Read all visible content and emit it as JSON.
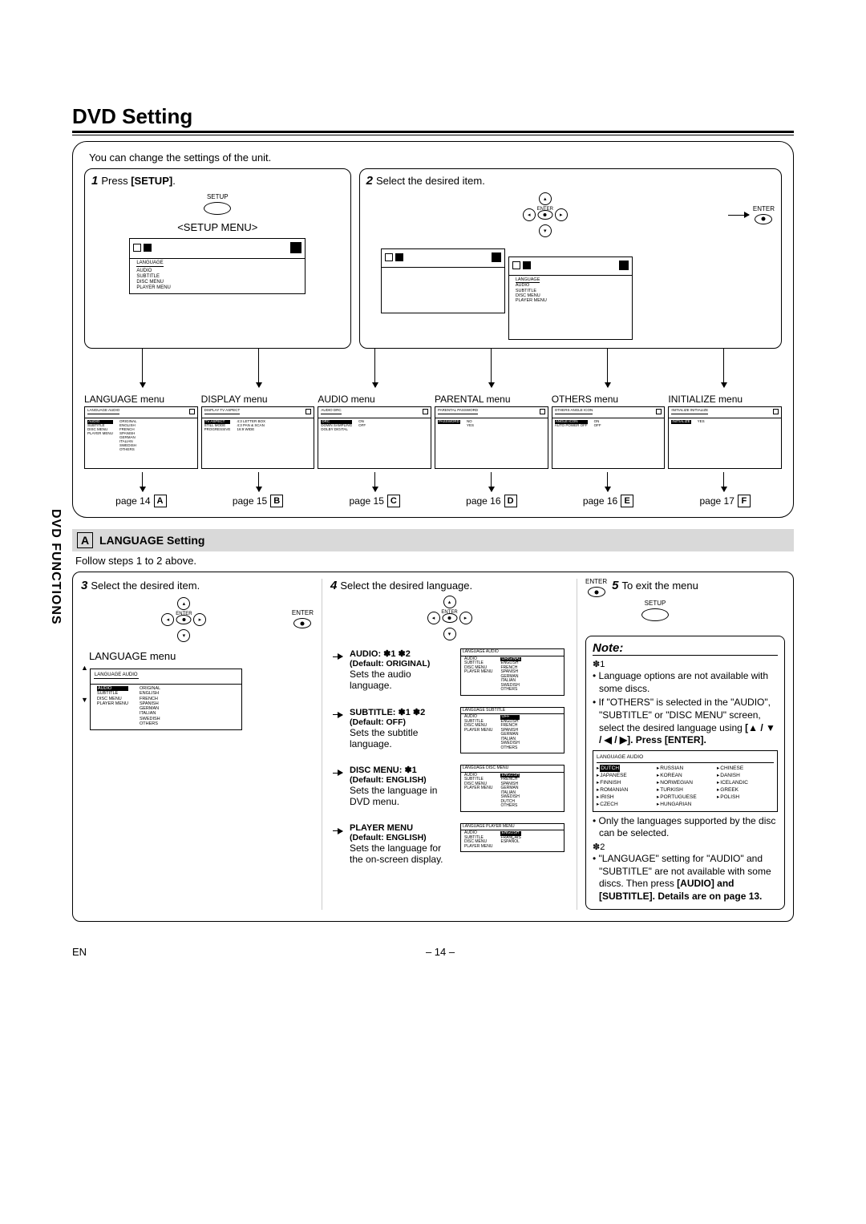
{
  "title": "DVD Setting",
  "sidebar": "DVD FUNCTIONS",
  "intro": "You can change the settings of the unit.",
  "step1": {
    "num": "1",
    "text": "Press ",
    "bold": "[SETUP]",
    "btn": "SETUP",
    "menuTitle": "<SETUP MENU>"
  },
  "step2": {
    "num": "2",
    "text": "Select the desired item.",
    "enter": "ENTER"
  },
  "osdLang": {
    "title": "LANGUAGE",
    "items": [
      "AUDIO",
      "SUBTITLE",
      "DISC MENU",
      "PLAYER MENU"
    ]
  },
  "menus": [
    {
      "name": "LANGUAGE menu",
      "t": "LANGUAGE  AUDIO",
      "l": [
        "AUDIO",
        "SUBTITLE",
        "DISC MENU",
        "PLAYER MENU"
      ],
      "r": [
        "ORIGINAL",
        "ENGLISH",
        "FRENCH",
        "SPANISH",
        "GERMAN",
        "ITALIAN",
        "SWEDISH",
        "OTHERS"
      ],
      "hl": 0,
      "pg": "page 14",
      "let": "A"
    },
    {
      "name": "DISPLAY menu",
      "t": "DISPLAY  TV ASPECT",
      "l": [
        "TV ASPECT",
        "STILL MODE",
        "PROGRESSIVE"
      ],
      "r": [
        "4:3 LETTER BOX",
        "4:3 PAN & SCAN",
        "16:9 WIDE"
      ],
      "hl": 0,
      "pg": "page 15",
      "let": "B"
    },
    {
      "name": "AUDIO menu",
      "t": "AUDIO  DRC",
      "l": [
        "DRC",
        "DOWN SAMPLING",
        "DOLBY DIGITAL"
      ],
      "r": [
        "ON",
        "OFF"
      ],
      "hl": 0,
      "pg": "page 15",
      "let": "C"
    },
    {
      "name": "PARENTAL menu",
      "t": "PARENTAL  PASSWORD",
      "l": [
        "PASSWORD"
      ],
      "r": [
        "NO",
        "YES"
      ],
      "hl": 0,
      "pg": "page 16",
      "let": "D"
    },
    {
      "name": "OTHERS menu",
      "t": "OTHERS  ANGLE ICON",
      "l": [
        "ANGLE ICON",
        "AUTO POWER OFF"
      ],
      "r": [
        "ON",
        "OFF"
      ],
      "hl": 0,
      "pg": "page 16",
      "let": "E"
    },
    {
      "name": "INITIALIZE menu",
      "t": "INITIALIZE  INITIALIZE",
      "l": [
        "INITIALIZE"
      ],
      "r": [
        "YES"
      ],
      "hl": 0,
      "pg": "page 17",
      "let": "F"
    }
  ],
  "sectionA": {
    "letter": "A",
    "title": "LANGUAGE Setting",
    "follow": "Follow steps 1 to 2 above."
  },
  "step3": {
    "num": "3",
    "text": "Select the desired item.",
    "label": "LANGUAGE menu",
    "enter": "ENTER",
    "osd": {
      "t": "LANGUAGE  AUDIO",
      "l": [
        "AUDIO",
        "SUBTITLE",
        "DISC MENU",
        "PLAYER MENU"
      ],
      "r": [
        "ORIGINAL",
        "ENGLISH",
        "FRENCH",
        "SPANISH",
        "GERMAN",
        "ITALIAN",
        "SWEDISH",
        "OTHERS"
      ]
    }
  },
  "step4": {
    "num": "4",
    "text": "Select the desired language."
  },
  "step5": {
    "num": "5",
    "text": "To exit the menu",
    "enter": "ENTER",
    "btn": "SETUP"
  },
  "specs": [
    {
      "h": "AUDIO: ✽1 ✽2",
      "d": "(Default: ORIGINAL)",
      "desc": "Sets the audio language.",
      "osd": {
        "t": "LANGUAGE  AUDIO",
        "l": [
          "AUDIO",
          "SUBTITLE",
          "DISC MENU",
          "PLAYER MENU"
        ],
        "r": [
          "ORIGINAL",
          "ENGLISH",
          "FRENCH",
          "SPANISH",
          "GERMAN",
          "ITALIAN",
          "SWEDISH",
          "OTHERS"
        ],
        "hl": 0
      }
    },
    {
      "h": "SUBTITLE: ✽1 ✽2",
      "d": "(Default: OFF)",
      "desc": "Sets the subtitle language.",
      "osd": {
        "t": "LANGUAGE  SUBTITLE",
        "l": [
          "AUDIO",
          "SUBTITLE",
          "DISC MENU",
          "PLAYER MENU"
        ],
        "r": [
          "OFF",
          "ENGLISH",
          "FRENCH",
          "SPANISH",
          "GERMAN",
          "ITALIAN",
          "SWEDISH",
          "OTHERS"
        ],
        "hl": 0
      }
    },
    {
      "h": "DISC MENU: ✽1",
      "d": "(Default: ENGLISH)",
      "desc": "Sets the language in DVD menu.",
      "osd": {
        "t": "LANGUAGE  DISC MENU",
        "l": [
          "AUDIO",
          "SUBTITLE",
          "DISC MENU",
          "PLAYER MENU"
        ],
        "r": [
          "ENGLISH",
          "FRENCH",
          "SPANISH",
          "GERMAN",
          "ITALIAN",
          "SWEDISH",
          "DUTCH",
          "OTHERS"
        ],
        "hl": 0
      }
    },
    {
      "h": "PLAYER MENU",
      "d": "(Default: ENGLISH)",
      "desc": "Sets the language for the on-screen display.",
      "osd": {
        "t": "LANGUAGE  PLAYER MENU",
        "l": [
          "AUDIO",
          "SUBTITLE",
          "DISC MENU",
          "PLAYER MENU"
        ],
        "r": [
          "ENGLISH",
          "FRANÇAIS",
          "ESPAÑOL"
        ],
        "hl": 0
      }
    }
  ],
  "note": {
    "title": "Note:",
    "s1": "✽1",
    "b1a": "Language options are not available with some discs.",
    "b1b": "If \"OTHERS\" is selected in the \"AUDIO\", \"SUBTITLE\" or \"DISC MENU\" screen, select the desired language using",
    "b1c": "[▲ / ▼ / ◀ / ▶]. Press [ENTER].",
    "langgrid": {
      "t": "LANGUAGE  AUDIO",
      "items": [
        "DUTCH",
        "RUSSIAN",
        "CHINESE",
        "JAPANESE",
        "KOREAN",
        "DANISH",
        "FINNISH",
        "NORWEGIAN",
        "ICELANDIC",
        "ROMANIAN",
        "TURKISH",
        "GREEK",
        "IRISH",
        "PORTUGUESE",
        "POLISH",
        "CZECH",
        "HUNGARIAN"
      ]
    },
    "b2": "Only the languages supported by the disc can be selected.",
    "s2": "✽2",
    "b3a": "\"LANGUAGE\" setting for \"AUDIO\" and \"SUBTITLE\" are not available with some discs. Then press",
    "b3b": "[AUDIO] and [SUBTITLE]. Details are on page 13."
  },
  "footer": {
    "left": "EN",
    "center": "– 14 –"
  }
}
